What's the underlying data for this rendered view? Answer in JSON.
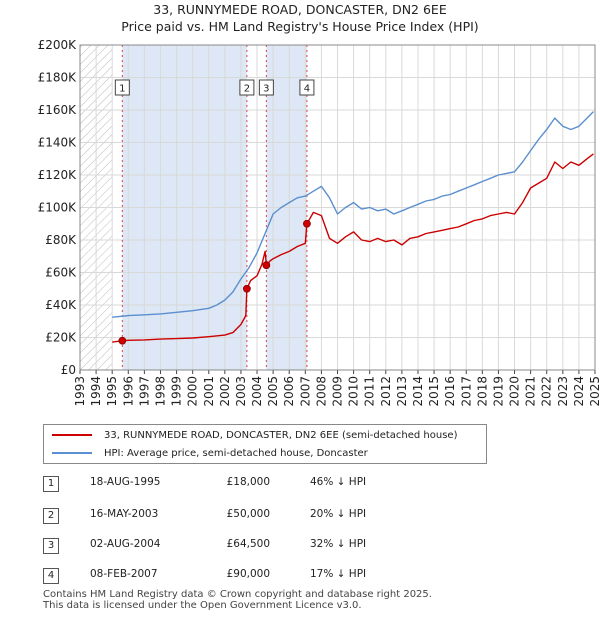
{
  "title_line1": "33, RUNNYMEDE ROAD, DONCASTER, DN2 6EE",
  "title_line2": "Price paid vs. HM Land Registry's House Price Index (HPI)",
  "chart_data": {
    "type": "line",
    "ylim": [
      0,
      200000
    ],
    "xlim": [
      1993.0,
      2025.0
    ],
    "y_ticks": [
      0,
      20000,
      40000,
      60000,
      80000,
      100000,
      120000,
      140000,
      160000,
      180000,
      200000
    ],
    "y_tick_labels": [
      "£0",
      "£20K",
      "£40K",
      "£60K",
      "£80K",
      "£100K",
      "£120K",
      "£140K",
      "£160K",
      "£180K",
      "£200K"
    ],
    "x_ticks": [
      1993,
      1994,
      1995,
      1996,
      1997,
      1998,
      1999,
      2000,
      2001,
      2002,
      2003,
      2004,
      2005,
      2006,
      2007,
      2008,
      2009,
      2010,
      2011,
      2012,
      2013,
      2014,
      2015,
      2016,
      2017,
      2018,
      2019,
      2020,
      2021,
      2022,
      2023,
      2024,
      2025
    ],
    "x_tick_labels": [
      "1993",
      "1994",
      "1995",
      "1996",
      "1997",
      "1998",
      "1999",
      "2000",
      "2001",
      "2002",
      "2003",
      "2004",
      "2005",
      "2006",
      "2007",
      "2008",
      "2009",
      "2010",
      "2011",
      "2012",
      "2013",
      "2014",
      "2015",
      "2016",
      "2017",
      "2018",
      "2019",
      "2020",
      "2021",
      "2022",
      "2023",
      "2024",
      "2025"
    ],
    "hatched_before": 1995.0,
    "shaded_ranges": [
      [
        1995.63,
        2003.37
      ],
      [
        2004.58,
        2007.1
      ]
    ],
    "series": [
      {
        "name": "33, RUNNYMEDE ROAD, DONCASTER, DN2 6EE (semi-detached house)",
        "color": "#cc0000",
        "x": [
          1995.0,
          1995.63,
          1996.0,
          1997.0,
          1998.0,
          1999.0,
          2000.0,
          2001.0,
          2002.0,
          2002.5,
          2003.0,
          2003.3,
          2003.37,
          2003.6,
          2004.0,
          2004.3,
          2004.5,
          2004.58,
          2004.8,
          2005.0,
          2005.5,
          2006.0,
          2006.5,
          2007.0,
          2007.1,
          2007.5,
          2008.0,
          2008.5,
          2009.0,
          2009.5,
          2010.0,
          2010.5,
          2011.0,
          2011.5,
          2012.0,
          2012.5,
          2013.0,
          2013.5,
          2014.0,
          2014.5,
          2015.0,
          2015.5,
          2016.0,
          2016.5,
          2017.0,
          2017.5,
          2018.0,
          2018.5,
          2019.0,
          2019.5,
          2020.0,
          2020.5,
          2021.0,
          2021.5,
          2022.0,
          2022.5,
          2023.0,
          2023.5,
          2024.0,
          2024.5,
          2024.9
        ],
        "y": [
          17200,
          18000,
          18300,
          18500,
          19000,
          19300,
          19700,
          20500,
          21500,
          23000,
          28000,
          33500,
          50000,
          55000,
          58000,
          65000,
          73000,
          64500,
          67000,
          68500,
          71000,
          73000,
          76000,
          78000,
          90000,
          97000,
          95000,
          81000,
          78000,
          82000,
          85000,
          80000,
          79000,
          81000,
          79000,
          80000,
          77000,
          81000,
          82000,
          84000,
          85000,
          86000,
          87000,
          88000,
          90000,
          92000,
          93000,
          95000,
          96000,
          97000,
          96000,
          103000,
          112000,
          115000,
          118000,
          128000,
          124000,
          128000,
          126000,
          130000,
          133000
        ]
      },
      {
        "name": "HPI: Average price, semi-detached house, Doncaster",
        "color": "#5b8fcf",
        "x": [
          1995.0,
          1995.5,
          1996.0,
          1997.0,
          1998.0,
          1999.0,
          2000.0,
          2001.0,
          2001.5,
          2002.0,
          2002.5,
          2003.0,
          2003.5,
          2004.0,
          2004.5,
          2005.0,
          2005.5,
          2006.0,
          2006.5,
          2007.0,
          2007.5,
          2008.0,
          2008.5,
          2009.0,
          2009.5,
          2010.0,
          2010.5,
          2011.0,
          2011.5,
          2012.0,
          2012.5,
          2013.0,
          2013.5,
          2014.0,
          2014.5,
          2015.0,
          2015.5,
          2016.0,
          2016.5,
          2017.0,
          2017.5,
          2018.0,
          2018.5,
          2019.0,
          2019.5,
          2020.0,
          2020.5,
          2021.0,
          2021.5,
          2022.0,
          2022.5,
          2023.0,
          2023.5,
          2024.0,
          2024.5,
          2024.9
        ],
        "y": [
          32500,
          33000,
          33500,
          34000,
          34500,
          35500,
          36500,
          38000,
          40000,
          43000,
          48000,
          56000,
          63000,
          72000,
          84000,
          96000,
          100000,
          103000,
          106000,
          107000,
          110000,
          113000,
          106000,
          96000,
          100000,
          103000,
          99000,
          100000,
          98000,
          99000,
          96000,
          98000,
          100000,
          102000,
          104000,
          105000,
          107000,
          108000,
          110000,
          112000,
          114000,
          116000,
          118000,
          120000,
          121000,
          122000,
          128000,
          135000,
          142000,
          148000,
          155000,
          150000,
          148000,
          150000,
          155000,
          159000
        ]
      }
    ],
    "transactions": [
      {
        "label": "1",
        "x": 1995.63,
        "price": 18000
      },
      {
        "label": "2",
        "x": 2003.37,
        "price": 50000
      },
      {
        "label": "3",
        "x": 2004.58,
        "price": 64500
      },
      {
        "label": "4",
        "x": 2007.1,
        "price": 90000
      }
    ]
  },
  "legend": {
    "property": "33, RUNNYMEDE ROAD, DONCASTER, DN2 6EE (semi-detached house)",
    "hpi": "HPI: Average price, semi-detached house, Doncaster"
  },
  "table": [
    {
      "num": "1",
      "date": "18-AUG-1995",
      "price": "£18,000",
      "hpi": "46% ↓ HPI"
    },
    {
      "num": "2",
      "date": "16-MAY-2003",
      "price": "£50,000",
      "hpi": "20% ↓ HPI"
    },
    {
      "num": "3",
      "date": "02-AUG-2004",
      "price": "£64,500",
      "hpi": "32% ↓ HPI"
    },
    {
      "num": "4",
      "date": "08-FEB-2007",
      "price": "£90,000",
      "hpi": "17% ↓ HPI"
    }
  ],
  "colors": {
    "property": "#cc0000",
    "hpi": "#5b8fcf",
    "shade": "#dde7f5",
    "grid": "#d9d9d9"
  },
  "footer": {
    "line1": "Contains HM Land Registry data © Crown copyright and database right 2025.",
    "line2": "This data is licensed under the Open Government Licence v3.0."
  }
}
